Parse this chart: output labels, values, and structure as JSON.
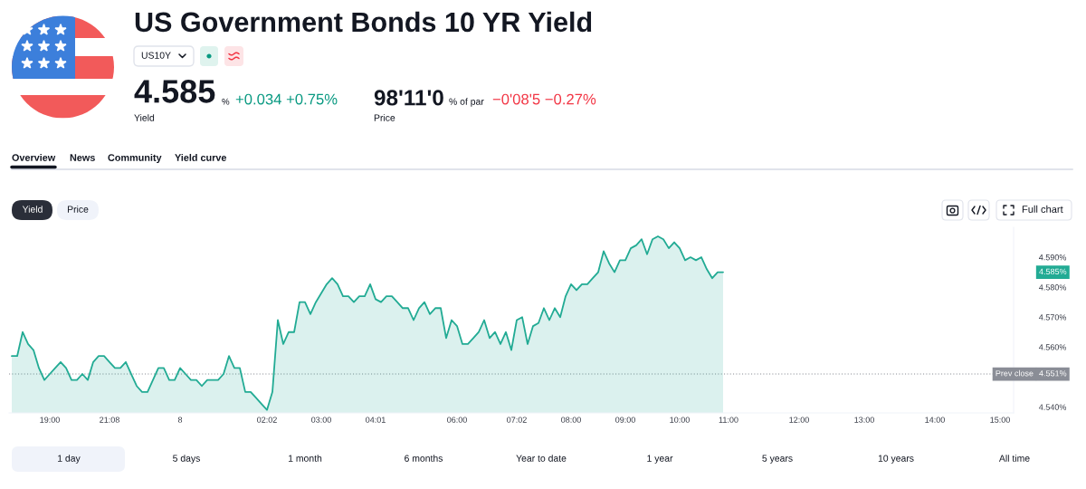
{
  "chart_data": {
    "type": "area",
    "title": "US Government Bonds 10 YR Yield",
    "subtitle": "US10Y",
    "categories": [
      null,
      null,
      null,
      null,
      null,
      null,
      null,
      "19:00",
      null,
      null,
      null,
      null,
      null,
      null,
      null,
      null,
      null,
      null,
      "21:08",
      null,
      null,
      null,
      null,
      null,
      null,
      null,
      null,
      null,
      null,
      null,
      null,
      "8",
      null,
      null,
      null,
      null,
      null,
      null,
      null,
      null,
      null,
      null,
      null,
      null,
      null,
      null,
      null,
      "02:02",
      null,
      null,
      null,
      null,
      null,
      null,
      null,
      null,
      null,
      "03:00",
      null,
      null,
      null,
      null,
      null,
      null,
      null,
      null,
      null,
      "04:01",
      null,
      null,
      null,
      null,
      null,
      null,
      null,
      null,
      null,
      null,
      null,
      null,
      null,
      null,
      "06:00",
      null,
      null,
      null,
      null,
      null,
      null,
      null,
      null,
      null,
      null,
      "07:02",
      null,
      null,
      null,
      null,
      null,
      null,
      null,
      null,
      null,
      "08:00",
      null,
      null,
      null,
      null,
      null,
      null,
      null,
      null,
      null,
      "09:00",
      null,
      null,
      null,
      null,
      null,
      null,
      null,
      null,
      null,
      "10:00",
      null,
      null,
      null,
      null,
      null,
      null,
      null,
      null,
      "11:00",
      null,
      null,
      null,
      null,
      null,
      null,
      null,
      null,
      null,
      null,
      null,
      null,
      "12:00",
      null,
      null,
      null,
      null,
      null,
      null,
      null,
      null,
      null,
      null,
      null,
      "13:00",
      null,
      null,
      null,
      null,
      null,
      null,
      null,
      null,
      null,
      null,
      null,
      null,
      "14:00",
      null,
      null,
      null,
      null,
      null,
      null,
      null,
      null,
      null,
      null,
      null,
      "15:00",
      null,
      null
    ],
    "series": [
      {
        "color": "#22ab94",
        "values": [
          4.557,
          4.557,
          4.565,
          4.561,
          4.559,
          4.553,
          4.549,
          4.551,
          4.553,
          4.555,
          4.553,
          4.549,
          4.549,
          4.551,
          4.549,
          4.555,
          4.557,
          4.557,
          4.555,
          4.553,
          4.553,
          4.555,
          4.551,
          4.547,
          4.545,
          4.545,
          4.549,
          4.553,
          4.553,
          4.549,
          4.549,
          4.553,
          4.551,
          4.549,
          4.549,
          4.547,
          4.549,
          4.549,
          4.549,
          4.551,
          4.557,
          4.553,
          4.553,
          4.545,
          4.545,
          4.543,
          4.541,
          4.539,
          4.545,
          4.569,
          4.561,
          4.565,
          4.565,
          4.575,
          4.575,
          4.571,
          4.575,
          4.578,
          4.581,
          4.583,
          4.581,
          4.577,
          4.577,
          4.575,
          4.577,
          4.577,
          4.581,
          4.576,
          4.575,
          4.577,
          4.577,
          4.575,
          4.573,
          4.573,
          4.569,
          4.573,
          4.575,
          4.571,
          4.573,
          4.573,
          4.563,
          4.569,
          4.567,
          4.561,
          4.561,
          4.563,
          4.565,
          4.569,
          4.563,
          4.565,
          4.561,
          4.565,
          4.559,
          4.569,
          4.57,
          4.561,
          4.567,
          4.568,
          4.573,
          4.569,
          4.573,
          4.57,
          4.577,
          4.581,
          4.579,
          4.581,
          4.581,
          4.583,
          4.585,
          4.592,
          4.588,
          4.585,
          4.589,
          4.589,
          4.593,
          4.594,
          4.596,
          4.591,
          4.596,
          4.597,
          4.596,
          4.593,
          4.595,
          4.593,
          4.589,
          4.59,
          4.589,
          4.59,
          4.586,
          4.583,
          4.585,
          4.585,
          null,
          null,
          null,
          null,
          null,
          null,
          null,
          null,
          null,
          null,
          null,
          null,
          null,
          null,
          null,
          null,
          null,
          null,
          null,
          null,
          null,
          null,
          null,
          null,
          null,
          null,
          null,
          null,
          null,
          null,
          null,
          null,
          null,
          null,
          null,
          null,
          null,
          null,
          null,
          null,
          null,
          null,
          null,
          null,
          null,
          null,
          null,
          null,
          null,
          null,
          null,
          null,
          null
        ]
      }
    ],
    "ylim": [
      4.538,
      4.6
    ],
    "yticks": [
      {
        "value": 4.54,
        "label": "4.540%"
      },
      {
        "value": 4.56,
        "label": "4.560%"
      },
      {
        "value": 4.57,
        "label": "4.570%"
      },
      {
        "value": 4.58,
        "label": "4.580%"
      },
      {
        "value": 4.59,
        "label": "4.590%"
      }
    ],
    "ref_lines": [
      {
        "axis": "y",
        "value": 4.551,
        "label": "Prev close",
        "color": "#8a8d96",
        "line_style": "dotted"
      }
    ],
    "annotations": [
      "4.585",
      "%",
      "+0.034 +0.75%",
      "Yield",
      "98'11'0",
      "% of par",
      "−0'08'5 −0.27%",
      "Price",
      "Overview",
      "News",
      "Community",
      "Yield curve",
      "Yield",
      "Price",
      "Full chart",
      "4.585%",
      "4.551%",
      "1 day",
      "5 days",
      "1 month",
      "6 months",
      "Year to date",
      "1 year",
      "5 years",
      "10 years",
      "All time"
    ]
  }
}
